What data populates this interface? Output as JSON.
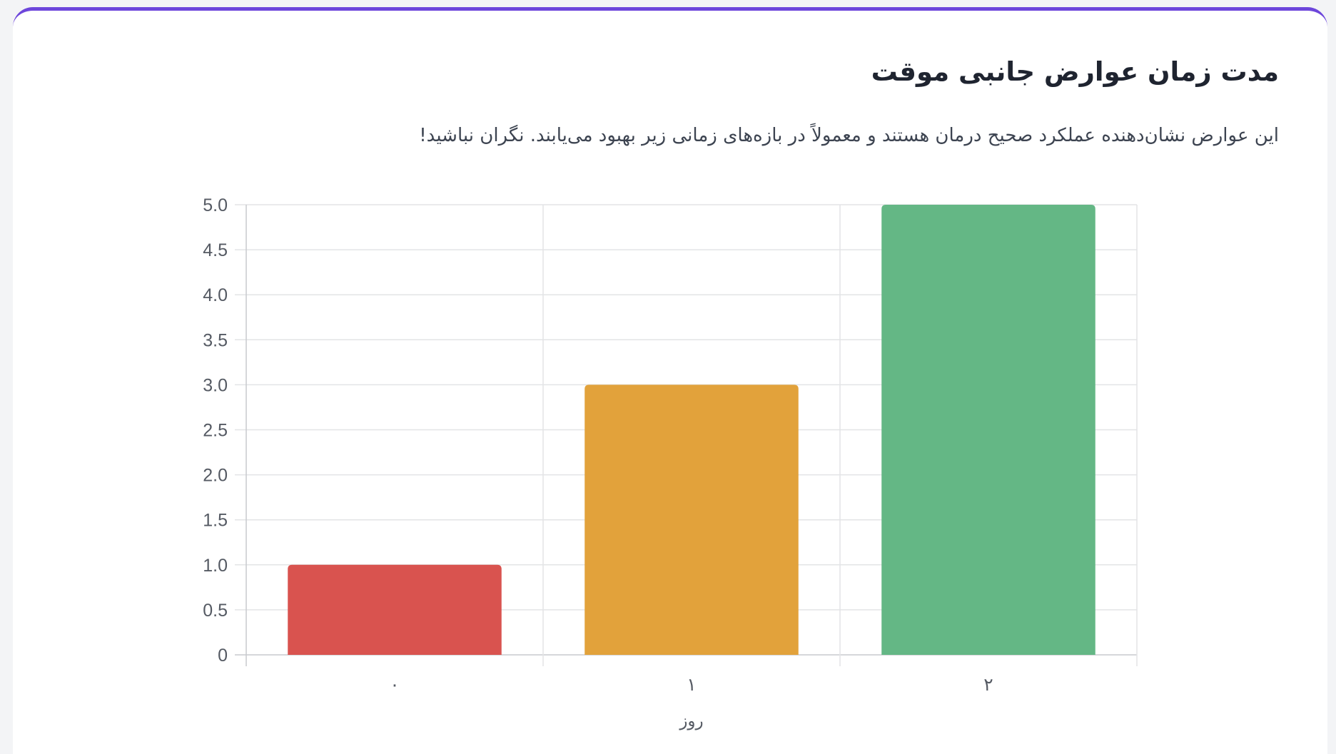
{
  "card": {
    "title": "مدت زمان عوارض جانبی موقت",
    "subtitle": "این عوارض نشان‌دهنده عملکرد صحیح درمان هستند و معمولاً در بازه‌های زمانی زیر بهبود می‌یابند. نگران نباشید!",
    "accent_color": "#6d46db"
  },
  "chart_data": {
    "type": "bar",
    "categories": [
      "۰",
      "۱",
      "۲"
    ],
    "values": [
      1,
      3,
      5
    ],
    "colors": [
      "#d9534f",
      "#e2a23b",
      "#64b785"
    ],
    "xlabel": "روز",
    "ylabel": "",
    "ylim": [
      0,
      5
    ],
    "yticks": [
      "0",
      "0.5",
      "1.0",
      "1.5",
      "2.0",
      "2.5",
      "3.0",
      "3.5",
      "4.0",
      "4.5",
      "5.0"
    ],
    "grid": true,
    "legend": "none"
  }
}
